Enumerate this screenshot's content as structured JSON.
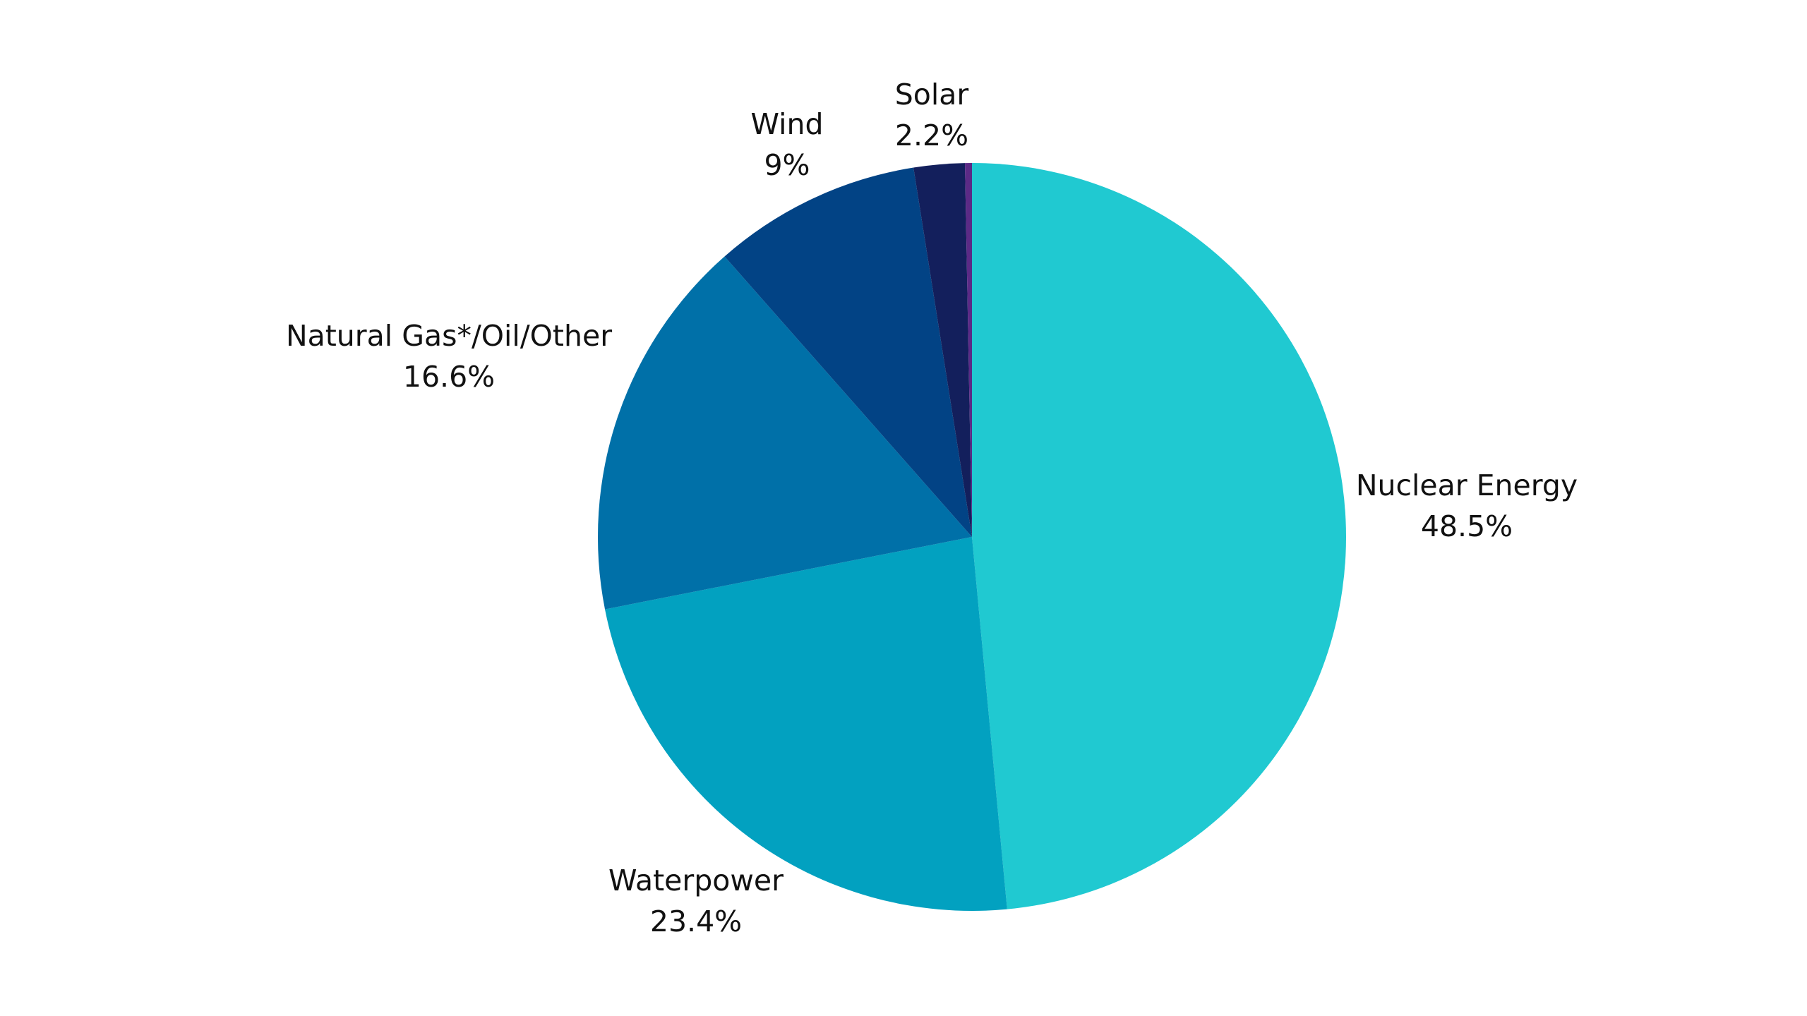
{
  "chart_data": {
    "type": "pie",
    "title": "",
    "series": [
      {
        "name": "Nuclear Energy",
        "value": 48.5,
        "label": "48.5%",
        "color": "#20C9D1"
      },
      {
        "name": "Waterpower",
        "value": 23.4,
        "label": "23.4%",
        "color": "#02A1C0"
      },
      {
        "name": "Natural Gas*/Oil/Other",
        "value": 16.6,
        "label": "16.6%",
        "color": "#0070A8"
      },
      {
        "name": "Wind",
        "value": 9,
        "label": "9%",
        "color": "#024385"
      },
      {
        "name": "Solar",
        "value": 2.2,
        "label": "2.2%",
        "color": "#131F5C"
      },
      {
        "name": "",
        "value": 0.3,
        "label": "",
        "color": "#5B2A86"
      }
    ],
    "start_angle": "12 o'clock",
    "direction": "clockwise",
    "legend": "none (labels outside slices)"
  }
}
